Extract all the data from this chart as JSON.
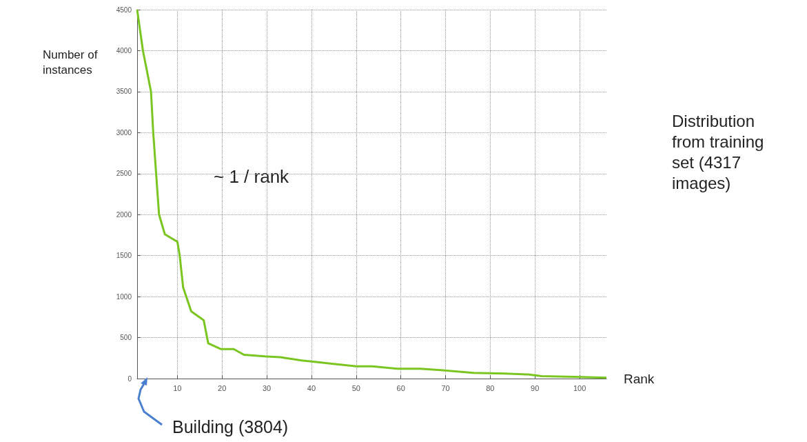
{
  "chart_data": {
    "type": "line",
    "xlabel": "Rank",
    "ylabel": "Number of instances",
    "annotations": [
      "~ 1 / rank",
      "Distribution from training set (4317  images)",
      "Building (3804)"
    ],
    "x": [
      1,
      2.3,
      4.1,
      4.6,
      5.9,
      7.2,
      10,
      10.5,
      11.3,
      13.1,
      15.9,
      16.9,
      19.7,
      22.6,
      24.9,
      30,
      33,
      37.8,
      41.5,
      44.6,
      50,
      53.6,
      59.2,
      64.4,
      69.4,
      76.2,
      83.3,
      88.5,
      91.5,
      98.7,
      106
    ],
    "series": [
      {
        "color": "#7ac520",
        "values": [
          4500,
          4000,
          3500,
          3000,
          2000,
          1760,
          1670,
          1510,
          1110,
          820,
          710,
          430,
          360,
          360,
          290,
          270,
          260,
          220,
          200,
          180,
          150,
          150,
          120,
          120,
          100,
          70,
          60,
          50,
          30,
          20,
          10
        ]
      }
    ],
    "xlim": [
      1,
      106
    ],
    "xticks": [
      10,
      20,
      30,
      40,
      50,
      60,
      70,
      80,
      90,
      100
    ],
    "ylim": [
      0,
      4500
    ],
    "yticks": [
      0,
      500,
      1000,
      1500,
      2000,
      2500,
      3000,
      3500,
      4000,
      4500
    ],
    "grid": true,
    "marker": "none",
    "line_style": "solid"
  }
}
